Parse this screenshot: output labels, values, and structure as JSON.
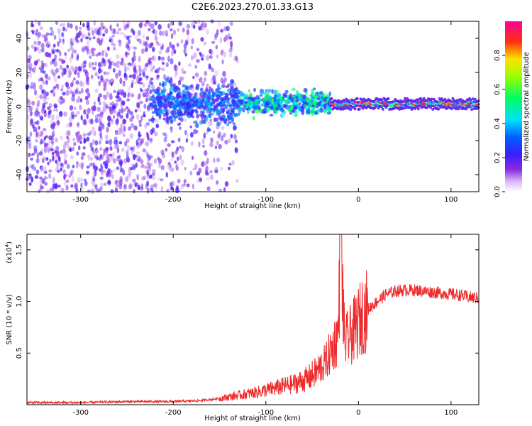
{
  "title": "C2E6.2023.270.01.33.G13",
  "colors": {
    "snr_line": "#ee2a2a",
    "axis": "#000000"
  },
  "chart_data": [
    {
      "type": "heatmap",
      "xlabel": "Height of straight line (km)",
      "ylabel": "Frequency (Hz)",
      "xlim": [
        -358,
        130
      ],
      "ylim": [
        -50,
        50
      ],
      "xticks": [
        -300,
        -200,
        -100,
        0,
        100
      ],
      "xtick_labels": [
        "-300",
        "-200",
        "-100",
        "0",
        "100"
      ],
      "yticks": [
        -40,
        -20,
        0,
        20,
        40
      ],
      "ytick_labels": [
        "-40",
        "-20",
        "0",
        "20",
        "40"
      ],
      "colorbar": {
        "label": "Normalized spectral amplitude",
        "range": [
          0,
          1
        ],
        "ticks": [
          0.0,
          0.2,
          0.4,
          0.6,
          0.8
        ],
        "tick_labels": [
          "0.0",
          "0.2",
          "0.4",
          "0.6",
          "0.8"
        ],
        "colormap": "rainbow (white-violet-blue-cyan-green-yellow-red-magenta)"
      },
      "features": [
        {
          "x_range": [
            -358,
            -130
          ],
          "description": "diffuse low-amplitude scatter across full frequency band"
        },
        {
          "x_range": [
            -225,
            -30
          ],
          "freq_center": 2,
          "spread_hz": 12,
          "description": "broadened central frequency band, amplitude 0.2-0.6"
        },
        {
          "x_range": [
            -30,
            130
          ],
          "freq_center": 1.5,
          "spread_hz": 3,
          "description": "narrow high-amplitude carrier line, amplitude 0.8-1.0"
        }
      ]
    },
    {
      "type": "line",
      "xlabel": "Height of straight line (km)",
      "ylabel": "SNR (10 * v/v)",
      "y_multiplier": "(x10^4)",
      "y_multiplier_base": "(x10",
      "y_multiplier_exp": "4",
      "y_multiplier_close": ")",
      "xlim": [
        -358,
        130
      ],
      "ylim": [
        0,
        1.65
      ],
      "xticks": [
        -300,
        -200,
        -100,
        0,
        100
      ],
      "xtick_labels": [
        "-300",
        "-200",
        "-100",
        "0",
        "100"
      ],
      "yticks": [
        0.5,
        1.0,
        1.5
      ],
      "ytick_labels": [
        "0.5",
        "1.0",
        "1.5"
      ],
      "series": [
        {
          "x": [
            -358,
            -300,
            -250,
            -200,
            -170,
            -150,
            -130,
            -110,
            -90,
            -70,
            -55,
            -45,
            -35,
            -28,
            -22,
            -19,
            -15,
            -10,
            -5,
            0,
            5,
            10,
            20,
            30,
            40,
            50,
            60,
            70,
            80,
            90,
            100,
            110,
            120,
            130
          ],
          "y": [
            0.02,
            0.02,
            0.03,
            0.03,
            0.04,
            0.06,
            0.09,
            0.12,
            0.16,
            0.2,
            0.25,
            0.32,
            0.42,
            0.55,
            0.68,
            1.6,
            0.6,
            0.65,
            0.72,
            0.8,
            0.88,
            0.92,
            1.0,
            1.07,
            1.1,
            1.11,
            1.11,
            1.1,
            1.09,
            1.08,
            1.07,
            1.06,
            1.04,
            1.03
          ]
        }
      ]
    }
  ]
}
